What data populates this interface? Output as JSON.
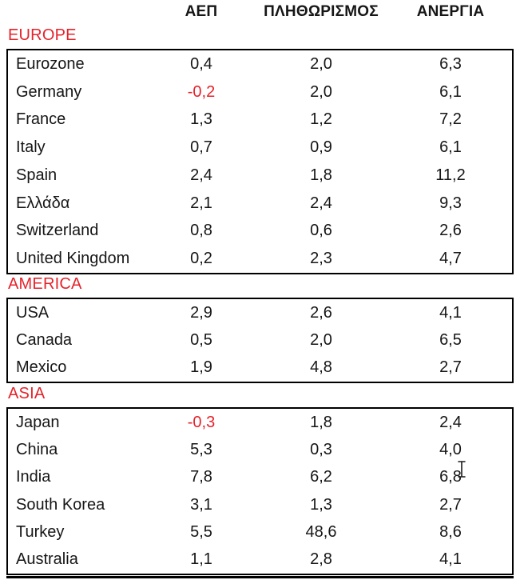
{
  "header": {
    "columns": [
      "ΑΕΠ",
      "ΠΛΗΘΩΡΙΣΜΟΣ",
      "ΑΝΕΡΓΙΑ"
    ]
  },
  "chart_data": {
    "type": "table",
    "columns": [
      "ΑΕΠ",
      "ΠΛΗΘΩΡΙΣΜΟΣ",
      "ΑΝΕΡΓΙΑ"
    ],
    "sections": [
      {
        "label": "EUROPE",
        "rows": [
          {
            "country": "Eurozone",
            "values": [
              "0,4",
              "2,0",
              "6,3"
            ]
          },
          {
            "country": "Germany",
            "values": [
              "-0,2",
              "2,0",
              "6,1"
            ]
          },
          {
            "country": "France",
            "values": [
              "1,3",
              "1,2",
              "7,2"
            ]
          },
          {
            "country": "Italy",
            "values": [
              "0,7",
              "0,9",
              "6,1"
            ]
          },
          {
            "country": "Spain",
            "values": [
              "2,4",
              "1,8",
              "11,2"
            ]
          },
          {
            "country": "Ελλάδα",
            "values": [
              "2,1",
              "2,4",
              "9,3"
            ]
          },
          {
            "country": "Switzerland",
            "values": [
              "0,8",
              "0,6",
              "2,6"
            ]
          },
          {
            "country": "United Kingdom",
            "values": [
              "0,2",
              "2,3",
              "4,7"
            ]
          }
        ]
      },
      {
        "label": "AMERICA",
        "rows": [
          {
            "country": "USA",
            "values": [
              "2,9",
              "2,6",
              "4,1"
            ]
          },
          {
            "country": "Canada",
            "values": [
              "0,5",
              "2,0",
              "6,5"
            ]
          },
          {
            "country": "Mexico",
            "values": [
              "1,9",
              "4,8",
              "2,7"
            ]
          }
        ]
      },
      {
        "label": "ASIA",
        "rows": [
          {
            "country": "Japan",
            "values": [
              "-0,3",
              "1,8",
              "2,4"
            ]
          },
          {
            "country": "China",
            "values": [
              "5,3",
              "0,3",
              "4,0"
            ]
          },
          {
            "country": "India",
            "values": [
              "7,8",
              "6,2",
              "6,8"
            ]
          },
          {
            "country": "South Korea",
            "values": [
              "3,1",
              "1,3",
              "2,7"
            ]
          },
          {
            "country": "Turkey",
            "values": [
              "5,5",
              "48,6",
              "8,6"
            ]
          },
          {
            "country": "Australia",
            "values": [
              "1,1",
              "2,8",
              "4,1"
            ]
          }
        ]
      }
    ]
  },
  "colors": {
    "accent_red": "#e5232b",
    "text": "#161616",
    "border": "#000000"
  },
  "cursor": {
    "type": "text-ibeam"
  }
}
